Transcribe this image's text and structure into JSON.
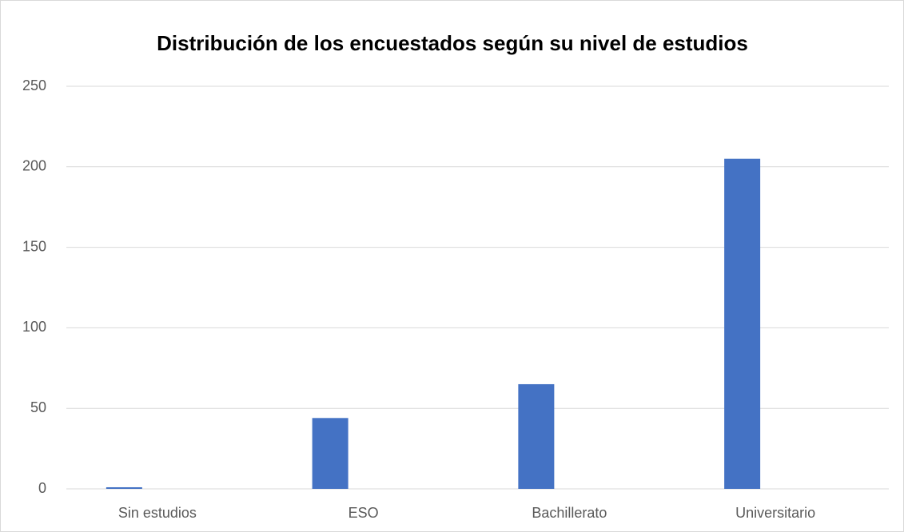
{
  "chart_data": {
    "type": "bar",
    "title": "Distribución de los encuestados según su nivel de estudios",
    "categories": [
      "Sin estudios",
      "ESO",
      "Bachillerato",
      "Universitario"
    ],
    "values": [
      1,
      44,
      65,
      205
    ],
    "color": "#4472c4",
    "ylim": [
      0,
      250
    ],
    "yticks": [
      0,
      50,
      100,
      150,
      200,
      250
    ],
    "grid": true
  }
}
